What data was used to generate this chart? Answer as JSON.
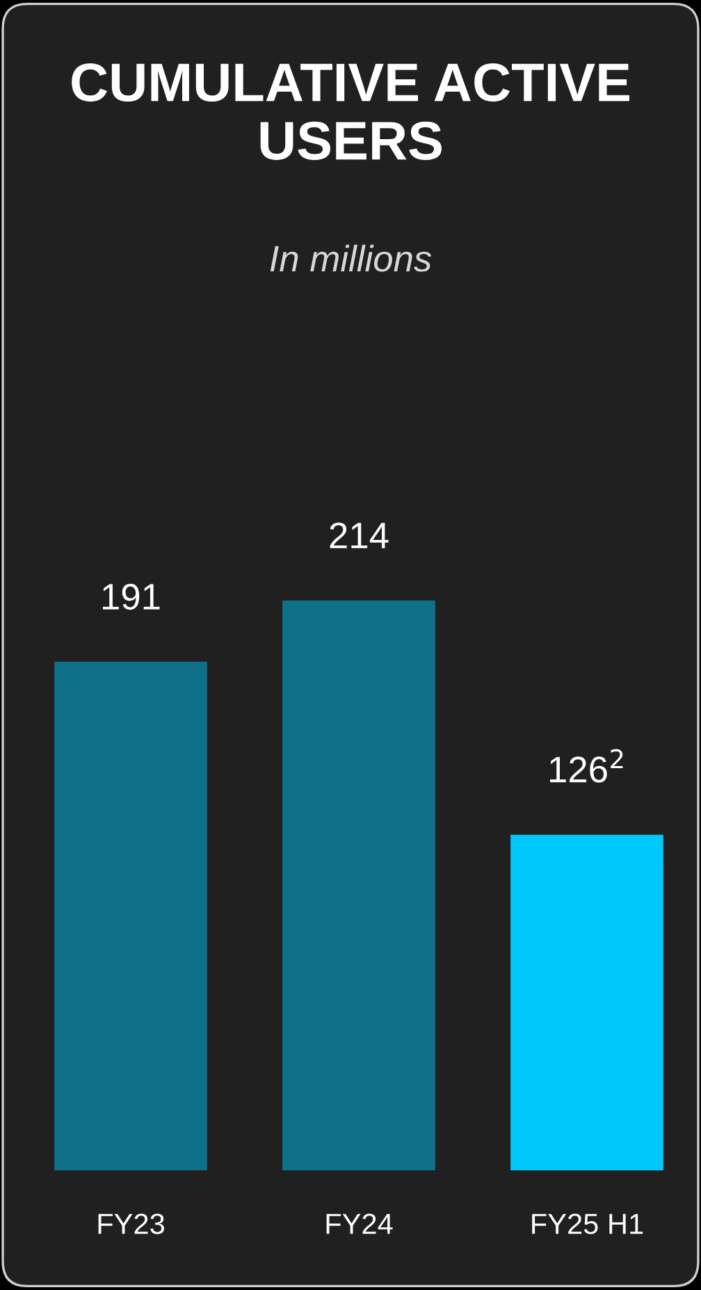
{
  "chart_data": {
    "type": "bar",
    "title": "CUMULATIVE ACTIVE USERS",
    "subtitle": "In millions",
    "categories": [
      "FY23",
      "FY24",
      "FY25 H1"
    ],
    "values": [
      191,
      214,
      126
    ],
    "colors": [
      "#0e7189",
      "#0e7189",
      "#00c8fa"
    ],
    "value_labels": [
      "191",
      "214",
      "126$^{2}$"
    ]
  }
}
